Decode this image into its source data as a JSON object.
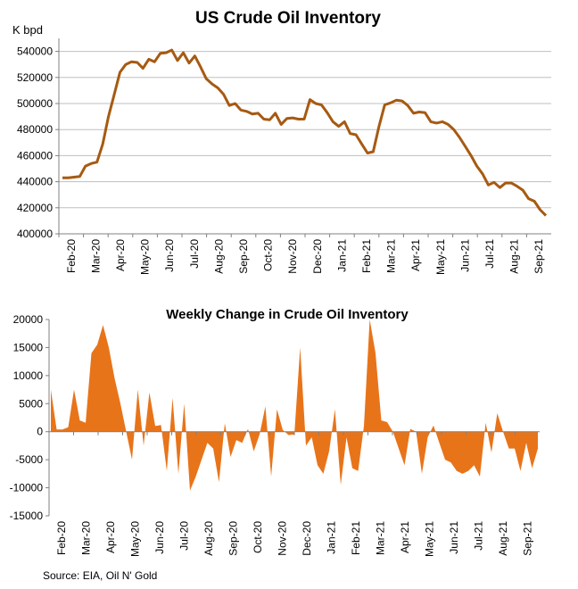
{
  "source": "Source: EIA, Oil N' Gold",
  "chart_data": [
    {
      "type": "line",
      "title": "US Crude Oil Inventory",
      "ylabel": "K bpd",
      "ylim": [
        400000,
        550000
      ],
      "yticks": [
        400000,
        420000,
        440000,
        460000,
        480000,
        500000,
        520000,
        540000
      ],
      "x_tick_labels": [
        "Feb-20",
        "Mar-20",
        "Apr-20",
        "May-20",
        "Jun-20",
        "Jul-20",
        "Aug-20",
        "Sep-20",
        "Oct-20",
        "Nov-20",
        "Dec-20",
        "Jan-21",
        "Feb-21",
        "Mar-21",
        "Apr-21",
        "May-21",
        "Jun-21",
        "Jul-21",
        "Aug-21",
        "Sep-21"
      ],
      "grid": "horizontal",
      "color": "#a65a12",
      "series": [
        {
          "values": [
            443000,
            443000,
            443500,
            444000,
            452000,
            454000,
            455000,
            469000,
            490000,
            507000,
            524000,
            530000,
            532000,
            531500,
            527000,
            534000,
            532000,
            538500,
            539000,
            541000,
            533000,
            539000,
            531000,
            536500,
            528000,
            519000,
            515000,
            512000,
            507000,
            498500,
            500000,
            495000,
            494000,
            492000,
            492500,
            488000,
            487500,
            492500,
            484000,
            488500,
            489000,
            488000,
            488000,
            503000,
            500000,
            499000,
            493000,
            486000,
            482500,
            486000,
            477000,
            476000,
            469000,
            462000,
            463000,
            482500,
            499000,
            500500,
            502500,
            502000,
            498500,
            492500,
            493500,
            493000,
            486000,
            485000,
            486000,
            484000,
            480000,
            474000,
            467000,
            460000,
            452000,
            446000,
            437500,
            439500,
            435500,
            439000,
            439000,
            436500,
            433500,
            427000,
            425000,
            418500,
            414000
          ]
        }
      ]
    },
    {
      "type": "area",
      "title": "Weekly Change in Crude Oil Inventory",
      "ylim": [
        -15000,
        20000
      ],
      "yticks": [
        -15000,
        -10000,
        -5000,
        0,
        5000,
        10000,
        15000,
        20000
      ],
      "x_tick_labels": [
        "Feb-20",
        "Mar-20",
        "Apr-20",
        "May-20",
        "Jun-20",
        "Jul-20",
        "Aug-20",
        "Sep-20",
        "Oct-20",
        "Nov-20",
        "Dec-20",
        "Jan-21",
        "Feb-21",
        "Mar-21",
        "Apr-21",
        "May-21",
        "Jun-21",
        "Jul-21",
        "Aug-21",
        "Sep-21"
      ],
      "grid": "none",
      "color": "#e8741a",
      "series": [
        {
          "values": [
            7500,
            400,
            400,
            800,
            7500,
            2000,
            1600,
            14000,
            15500,
            19000,
            15000,
            9500,
            5000,
            0,
            -5000,
            7500,
            -2500,
            7000,
            1000,
            1200,
            -7000,
            6000,
            -7500,
            5000,
            -10500,
            -8000,
            -5000,
            -2000,
            -3000,
            -9000,
            1500,
            -4500,
            -1500,
            -2000,
            500,
            -3500,
            -500,
            4500,
            -8000,
            4000,
            300,
            -600,
            -500,
            15000,
            -2500,
            -1000,
            -6000,
            -7500,
            -3500,
            4000,
            -9500,
            -1000,
            -6500,
            -7000,
            1000,
            20000,
            14000,
            2000,
            1700,
            0,
            -3000,
            -6000,
            500,
            0,
            -7500,
            -1000,
            1100,
            -2000,
            -5000,
            -5500,
            -7000,
            -7500,
            -7000,
            -6000,
            -8000,
            1600,
            -3700,
            3300,
            0,
            -3000,
            -3000,
            -7000,
            -2000,
            -6500,
            -3000
          ]
        }
      ]
    }
  ]
}
